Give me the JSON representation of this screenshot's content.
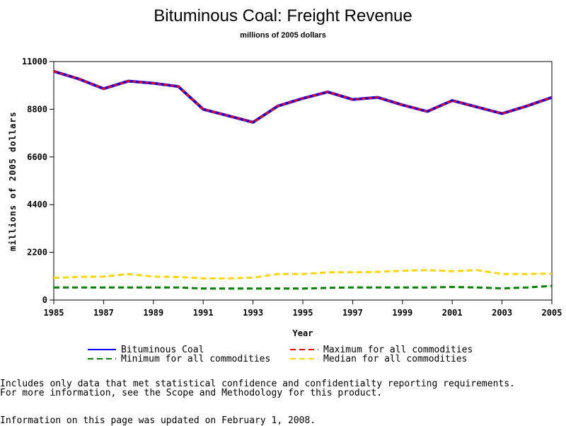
{
  "chart_data": {
    "type": "line",
    "title": "Bituminous Coal: Freight Revenue",
    "subtitle": "millions of 2005 dollars",
    "xlabel": "Year",
    "ylabel": "millions of 2005 dollars",
    "xlim": [
      1985,
      2005
    ],
    "ylim": [
      0,
      11000
    ],
    "x_ticks": [
      1985,
      1987,
      1989,
      1991,
      1993,
      1995,
      1997,
      1999,
      2001,
      2003,
      2005
    ],
    "y_ticks": [
      0,
      2200,
      4400,
      6600,
      8800,
      11000
    ],
    "x": [
      1985,
      1986,
      1987,
      1988,
      1989,
      1990,
      1991,
      1992,
      1993,
      1994,
      1995,
      1996,
      1997,
      1998,
      1999,
      2000,
      2001,
      2002,
      2003,
      2004,
      2005
    ],
    "legend_position": "bottom",
    "series": [
      {
        "name": "Bituminous Coal",
        "color": "#0000ff",
        "dash": "solid",
        "values": [
          10550,
          10200,
          9750,
          10100,
          10000,
          9850,
          8800,
          8500,
          8200,
          8950,
          9300,
          9600,
          9250,
          9350,
          9000,
          8700,
          9200,
          8900,
          8600,
          8950,
          9350
        ]
      },
      {
        "name": "Maximum for all commodities",
        "color": "#ff0000",
        "dash": "dashed",
        "values": [
          10550,
          10200,
          9750,
          10100,
          10000,
          9850,
          8800,
          8500,
          8200,
          8950,
          9300,
          9600,
          9250,
          9350,
          9000,
          8700,
          9200,
          8900,
          8600,
          8950,
          9350
        ]
      },
      {
        "name": "Minimum for all commodities",
        "color": "#008000",
        "dash": "dashed",
        "values": [
          580,
          580,
          580,
          580,
          580,
          580,
          530,
          530,
          530,
          530,
          530,
          560,
          580,
          580,
          580,
          580,
          600,
          580,
          540,
          580,
          650
        ]
      },
      {
        "name": "Median for all commodities",
        "color": "#ffd700",
        "dash": "dashed",
        "values": [
          1020,
          1070,
          1080,
          1200,
          1080,
          1060,
          1000,
          1000,
          1030,
          1200,
          1200,
          1280,
          1280,
          1300,
          1350,
          1380,
          1330,
          1380,
          1200,
          1200,
          1220
        ]
      }
    ]
  },
  "footnotes": {
    "line1": "Includes only data that met statistical confidence and confidentialty reporting requirements.",
    "line2": "For more information, see the Scope and Methodology for this product.",
    "updated": "Information on this page was updated on February 1, 2008."
  }
}
